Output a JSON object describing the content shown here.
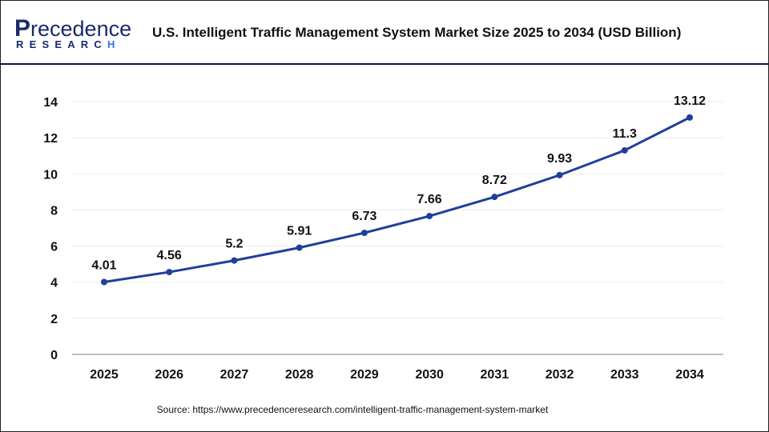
{
  "brand": {
    "logo_top": "recedence",
    "logo_initial": "P",
    "logo_bottom": "RESEARC",
    "logo_bottom_last": "H"
  },
  "header": {
    "title": "U.S. Intelligent Traffic Management System Market Size 2025 to 2034 (USD Billion)"
  },
  "source": "Source: https://www.precedenceresearch.com/intelligent-traffic-management-system-market",
  "colors": {
    "line": "#1f3f9a",
    "grid": "#ececec",
    "axis": "#bdbdbd",
    "header_rule": "#14143c"
  },
  "chart_data": {
    "type": "line",
    "title": "U.S. Intelligent Traffic Management System Market Size 2025 to 2034 (USD Billion)",
    "categories": [
      "2025",
      "2026",
      "2027",
      "2028",
      "2029",
      "2030",
      "2031",
      "2032",
      "2033",
      "2034"
    ],
    "values": [
      4.01,
      4.56,
      5.2,
      5.91,
      6.73,
      7.66,
      8.72,
      9.93,
      11.3,
      13.12
    ],
    "labels": [
      "4.01",
      "4.56",
      "5.2",
      "5.91",
      "6.73",
      "7.66",
      "8.72",
      "9.93",
      "11.3",
      "13.12"
    ],
    "yticks": [
      "0",
      "2",
      "4",
      "6",
      "8",
      "10",
      "12",
      "14"
    ],
    "ylim": [
      0,
      14
    ],
    "grid": true,
    "xlabel": "",
    "ylabel": ""
  }
}
